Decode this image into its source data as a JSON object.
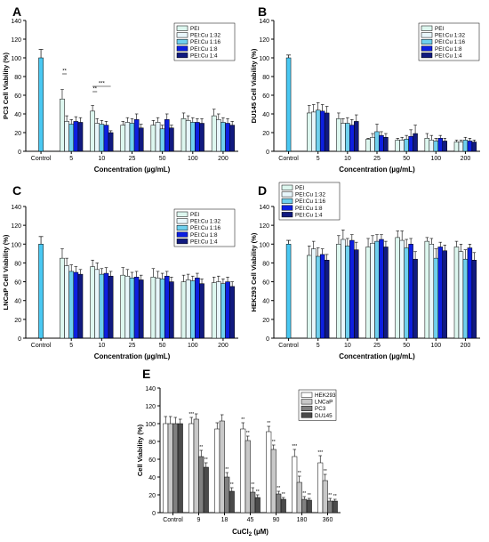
{
  "figure": {
    "panel_letters": [
      "A",
      "B",
      "C",
      "D",
      "E"
    ]
  },
  "chart_data": [
    {
      "panel": "A",
      "type": "bar",
      "ylabel": "PC3 Cell Viability (%)",
      "xlabel": "Concentration (µg/mL)",
      "ylim": [
        0,
        140
      ],
      "yticks": [
        0,
        20,
        40,
        60,
        80,
        100,
        120,
        140
      ],
      "categories": [
        "Control",
        "5",
        "10",
        "25",
        "50",
        "100",
        "200"
      ],
      "legend_position": "top-right",
      "control": {
        "value": 100,
        "error": 9
      },
      "series": [
        {
          "name": "PEI",
          "values": [
            null,
            56,
            43,
            28,
            28,
            35,
            38
          ],
          "errors": [
            null,
            10,
            6,
            4,
            5,
            6,
            7
          ]
        },
        {
          "name": "PEI:Cu 1:32",
          "values": [
            null,
            32,
            30,
            31,
            31,
            33,
            34
          ],
          "errors": [
            null,
            6,
            5,
            5,
            5,
            5,
            6
          ]
        },
        {
          "name": "PEI:Cu 1:16",
          "values": [
            null,
            29,
            29,
            30,
            24,
            31,
            31
          ],
          "errors": [
            null,
            5,
            4,
            5,
            4,
            5,
            5
          ]
        },
        {
          "name": "PEI:Cu 1:8",
          "values": [
            null,
            32,
            28,
            34,
            34,
            31,
            30
          ],
          "errors": [
            null,
            5,
            4,
            6,
            6,
            4,
            5
          ]
        },
        {
          "name": "PEI:Cu 1:4",
          "values": [
            null,
            31,
            20,
            25,
            25,
            30,
            28
          ],
          "errors": [
            null,
            5,
            2,
            4,
            3,
            5,
            4
          ]
        }
      ],
      "annotations": [
        "**",
        "**",
        "***"
      ]
    },
    {
      "panel": "B",
      "type": "bar",
      "ylabel": "DU145 Cell Viability (%)",
      "xlabel": "Concentration (µg/mL)",
      "ylim": [
        0,
        140
      ],
      "yticks": [
        0,
        20,
        40,
        60,
        80,
        100,
        120,
        140
      ],
      "categories": [
        "Control",
        "5",
        "10",
        "25",
        "50",
        "100",
        "200"
      ],
      "legend_position": "top-right",
      "control": {
        "value": 100,
        "error": 3
      },
      "series": [
        {
          "name": "PEI",
          "values": [
            null,
            41,
            35,
            13,
            12,
            14,
            10
          ],
          "errors": [
            null,
            8,
            6,
            1,
            2,
            5,
            2
          ]
        },
        {
          "name": "PEI:Cu 1:32",
          "values": [
            null,
            42,
            30,
            15,
            12,
            12,
            10
          ],
          "errors": [
            null,
            8,
            5,
            4,
            3,
            5,
            2
          ]
        },
        {
          "name": "PEI:Cu 1:16",
          "values": [
            null,
            44,
            30,
            21,
            13,
            11,
            12
          ],
          "errors": [
            null,
            8,
            6,
            8,
            4,
            3,
            3
          ]
        },
        {
          "name": "PEI:Cu 1:8",
          "values": [
            null,
            43,
            28,
            17,
            16,
            14,
            11
          ],
          "errors": [
            null,
            7,
            6,
            4,
            7,
            3,
            3
          ]
        },
        {
          "name": "PEI:Cu 1:4",
          "values": [
            null,
            41,
            32,
            15,
            19,
            11,
            10
          ],
          "errors": [
            null,
            7,
            7,
            4,
            9,
            3,
            2
          ]
        }
      ]
    },
    {
      "panel": "C",
      "type": "bar",
      "ylabel": "LNCaP Cell Viability (%)",
      "xlabel": "Concentration (µg/mL)",
      "ylim": [
        0,
        140
      ],
      "yticks": [
        0,
        20,
        40,
        60,
        80,
        100,
        120,
        140
      ],
      "categories": [
        "Control",
        "5",
        "10",
        "25",
        "50",
        "100",
        "200"
      ],
      "legend_position": "top-right",
      "control": {
        "value": 100,
        "error": 8
      },
      "series": [
        {
          "name": "PEI",
          "values": [
            null,
            85,
            76,
            67,
            65,
            60,
            59
          ],
          "errors": [
            null,
            10,
            7,
            8,
            9,
            7,
            6
          ]
        },
        {
          "name": "PEI:Cu 1:32",
          "values": [
            null,
            77,
            73,
            66,
            64,
            62,
            60
          ],
          "errors": [
            null,
            8,
            7,
            7,
            7,
            6,
            6
          ]
        },
        {
          "name": "PEI:Cu 1:16",
          "values": [
            null,
            71,
            68,
            64,
            63,
            61,
            58
          ],
          "errors": [
            null,
            7,
            6,
            6,
            6,
            5,
            5
          ]
        },
        {
          "name": "PEI:Cu 1:8",
          "values": [
            null,
            70,
            69,
            65,
            66,
            64,
            60
          ],
          "errors": [
            null,
            6,
            6,
            6,
            5,
            5,
            5
          ]
        },
        {
          "name": "PEI:Cu 1:4",
          "values": [
            null,
            68,
            66,
            62,
            60,
            58,
            55
          ],
          "errors": [
            null,
            5,
            5,
            5,
            5,
            5,
            5
          ]
        }
      ]
    },
    {
      "panel": "D",
      "type": "bar",
      "ylabel": "HEK293 Cell Viability (%)",
      "xlabel": "Concentration (µg/mL)",
      "ylim": [
        0,
        140
      ],
      "yticks": [
        0,
        20,
        40,
        60,
        80,
        100,
        120,
        140
      ],
      "categories": [
        "Control",
        "5",
        "10",
        "25",
        "50",
        "100",
        "200"
      ],
      "legend_position": "top-left",
      "control": {
        "value": 100,
        "error": 4
      },
      "series": [
        {
          "name": "PEI",
          "values": [
            null,
            88,
            100,
            97,
            107,
            103,
            97
          ],
          "errors": [
            null,
            10,
            9,
            9,
            7,
            4,
            6
          ]
        },
        {
          "name": "PEI:Cu 1:32",
          "values": [
            null,
            95,
            105,
            101,
            104,
            100,
            92
          ],
          "errors": [
            null,
            8,
            10,
            8,
            10,
            6,
            8
          ]
        },
        {
          "name": "PEI:Cu 1:16",
          "values": [
            null,
            87,
            98,
            103,
            96,
            85,
            84
          ],
          "errors": [
            null,
            9,
            8,
            7,
            9,
            10,
            10
          ]
        },
        {
          "name": "PEI:Cu 1:8",
          "values": [
            null,
            89,
            104,
            105,
            100,
            97,
            96
          ],
          "errors": [
            null,
            6,
            6,
            5,
            6,
            5,
            4
          ]
        },
        {
          "name": "PEI:Cu 1:4",
          "values": [
            null,
            83,
            94,
            97,
            84,
            93,
            83
          ],
          "errors": [
            null,
            6,
            8,
            6,
            8,
            6,
            8
          ]
        }
      ]
    },
    {
      "panel": "E",
      "type": "bar",
      "ylabel": "Cell Viability (%)",
      "xlabel_main": "CuCl",
      "xlabel_sub": "2",
      "xlabel_unit": " (µM)",
      "ylim": [
        0,
        140
      ],
      "yticks": [
        0,
        20,
        40,
        60,
        80,
        100,
        120,
        140
      ],
      "categories": [
        "Control",
        "9",
        "18",
        "45",
        "90",
        "180",
        "360"
      ],
      "legend_position": "top-right",
      "series": [
        {
          "name": "HEK293",
          "values": [
            100,
            100,
            94,
            94,
            91,
            63,
            56
          ],
          "errors": [
            8,
            7,
            7,
            7,
            6,
            8,
            8
          ]
        },
        {
          "name": "LNCaP",
          "values": [
            100,
            105,
            103,
            81,
            71,
            34,
            36
          ],
          "errors": [
            8,
            6,
            7,
            5,
            5,
            7,
            7
          ]
        },
        {
          "name": "PC3",
          "values": [
            100,
            63,
            40,
            23,
            21,
            15,
            13
          ],
          "errors": [
            7,
            7,
            5,
            5,
            3,
            3,
            3
          ]
        },
        {
          "name": "DU145",
          "values": [
            100,
            51,
            24,
            17,
            15,
            14,
            13
          ],
          "errors": [
            5,
            5,
            4,
            3,
            2,
            2,
            2
          ]
        }
      ],
      "annotations": [
        [
          "",
          "***",
          "",
          "**",
          "**",
          "***",
          "***"
        ],
        [
          "",
          "",
          "",
          "**",
          "**",
          "**",
          "**"
        ],
        [
          "",
          "**",
          "**",
          "**",
          "**",
          "**",
          "**"
        ],
        [
          "",
          "**",
          "**",
          "**",
          "**",
          "**",
          "**"
        ]
      ]
    }
  ],
  "styles": {
    "series_fills": [
      "#ddf7ef",
      "#e8f6fb",
      "#6fd0ee",
      "#0d1fe0",
      "#111a80"
    ],
    "control_fill": "#49c8f2",
    "panel_e_fills": [
      "#ffffff",
      "#c8c8c8",
      "#808080",
      "#4a4a4a"
    ]
  }
}
